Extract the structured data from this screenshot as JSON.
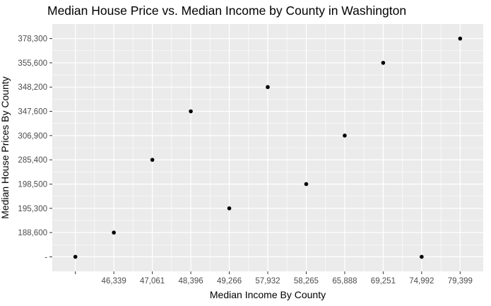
{
  "chart_data": {
    "type": "scatter",
    "title": "Median House Price vs. Median Income by County in Washington",
    "xlabel": "Median Income By County",
    "ylabel": "Median House Prices By County",
    "x_categories": [
      "",
      "46,339",
      "47,061",
      "48,396",
      "49,266",
      "57,932",
      "58,265",
      "65,888",
      "69,251",
      "74,992",
      "79,399"
    ],
    "y_categories": [
      "-",
      "188,600",
      "195,300",
      "198,500",
      "285,400",
      "306,900",
      "347,600",
      "348,200",
      "355,600",
      "378,300"
    ],
    "points": [
      {
        "x": "",
        "y": "-"
      },
      {
        "x": "46,339",
        "y": "188,600"
      },
      {
        "x": "47,061",
        "y": "285,400"
      },
      {
        "x": "48,396",
        "y": "347,600"
      },
      {
        "x": "49,266",
        "y": "195,300"
      },
      {
        "x": "57,932",
        "y": "348,200"
      },
      {
        "x": "58,265",
        "y": "198,500"
      },
      {
        "x": "65,888",
        "y": "306,900"
      },
      {
        "x": "69,251",
        "y": "355,600"
      },
      {
        "x": "74,992",
        "y": "-"
      },
      {
        "x": "79,399",
        "y": "378,300"
      }
    ],
    "grid": true,
    "legend": "none",
    "colors": {
      "panel": "#ebebeb",
      "grid": "#ffffff",
      "point": "#000000",
      "tick_text": "#4d4d4d"
    }
  }
}
